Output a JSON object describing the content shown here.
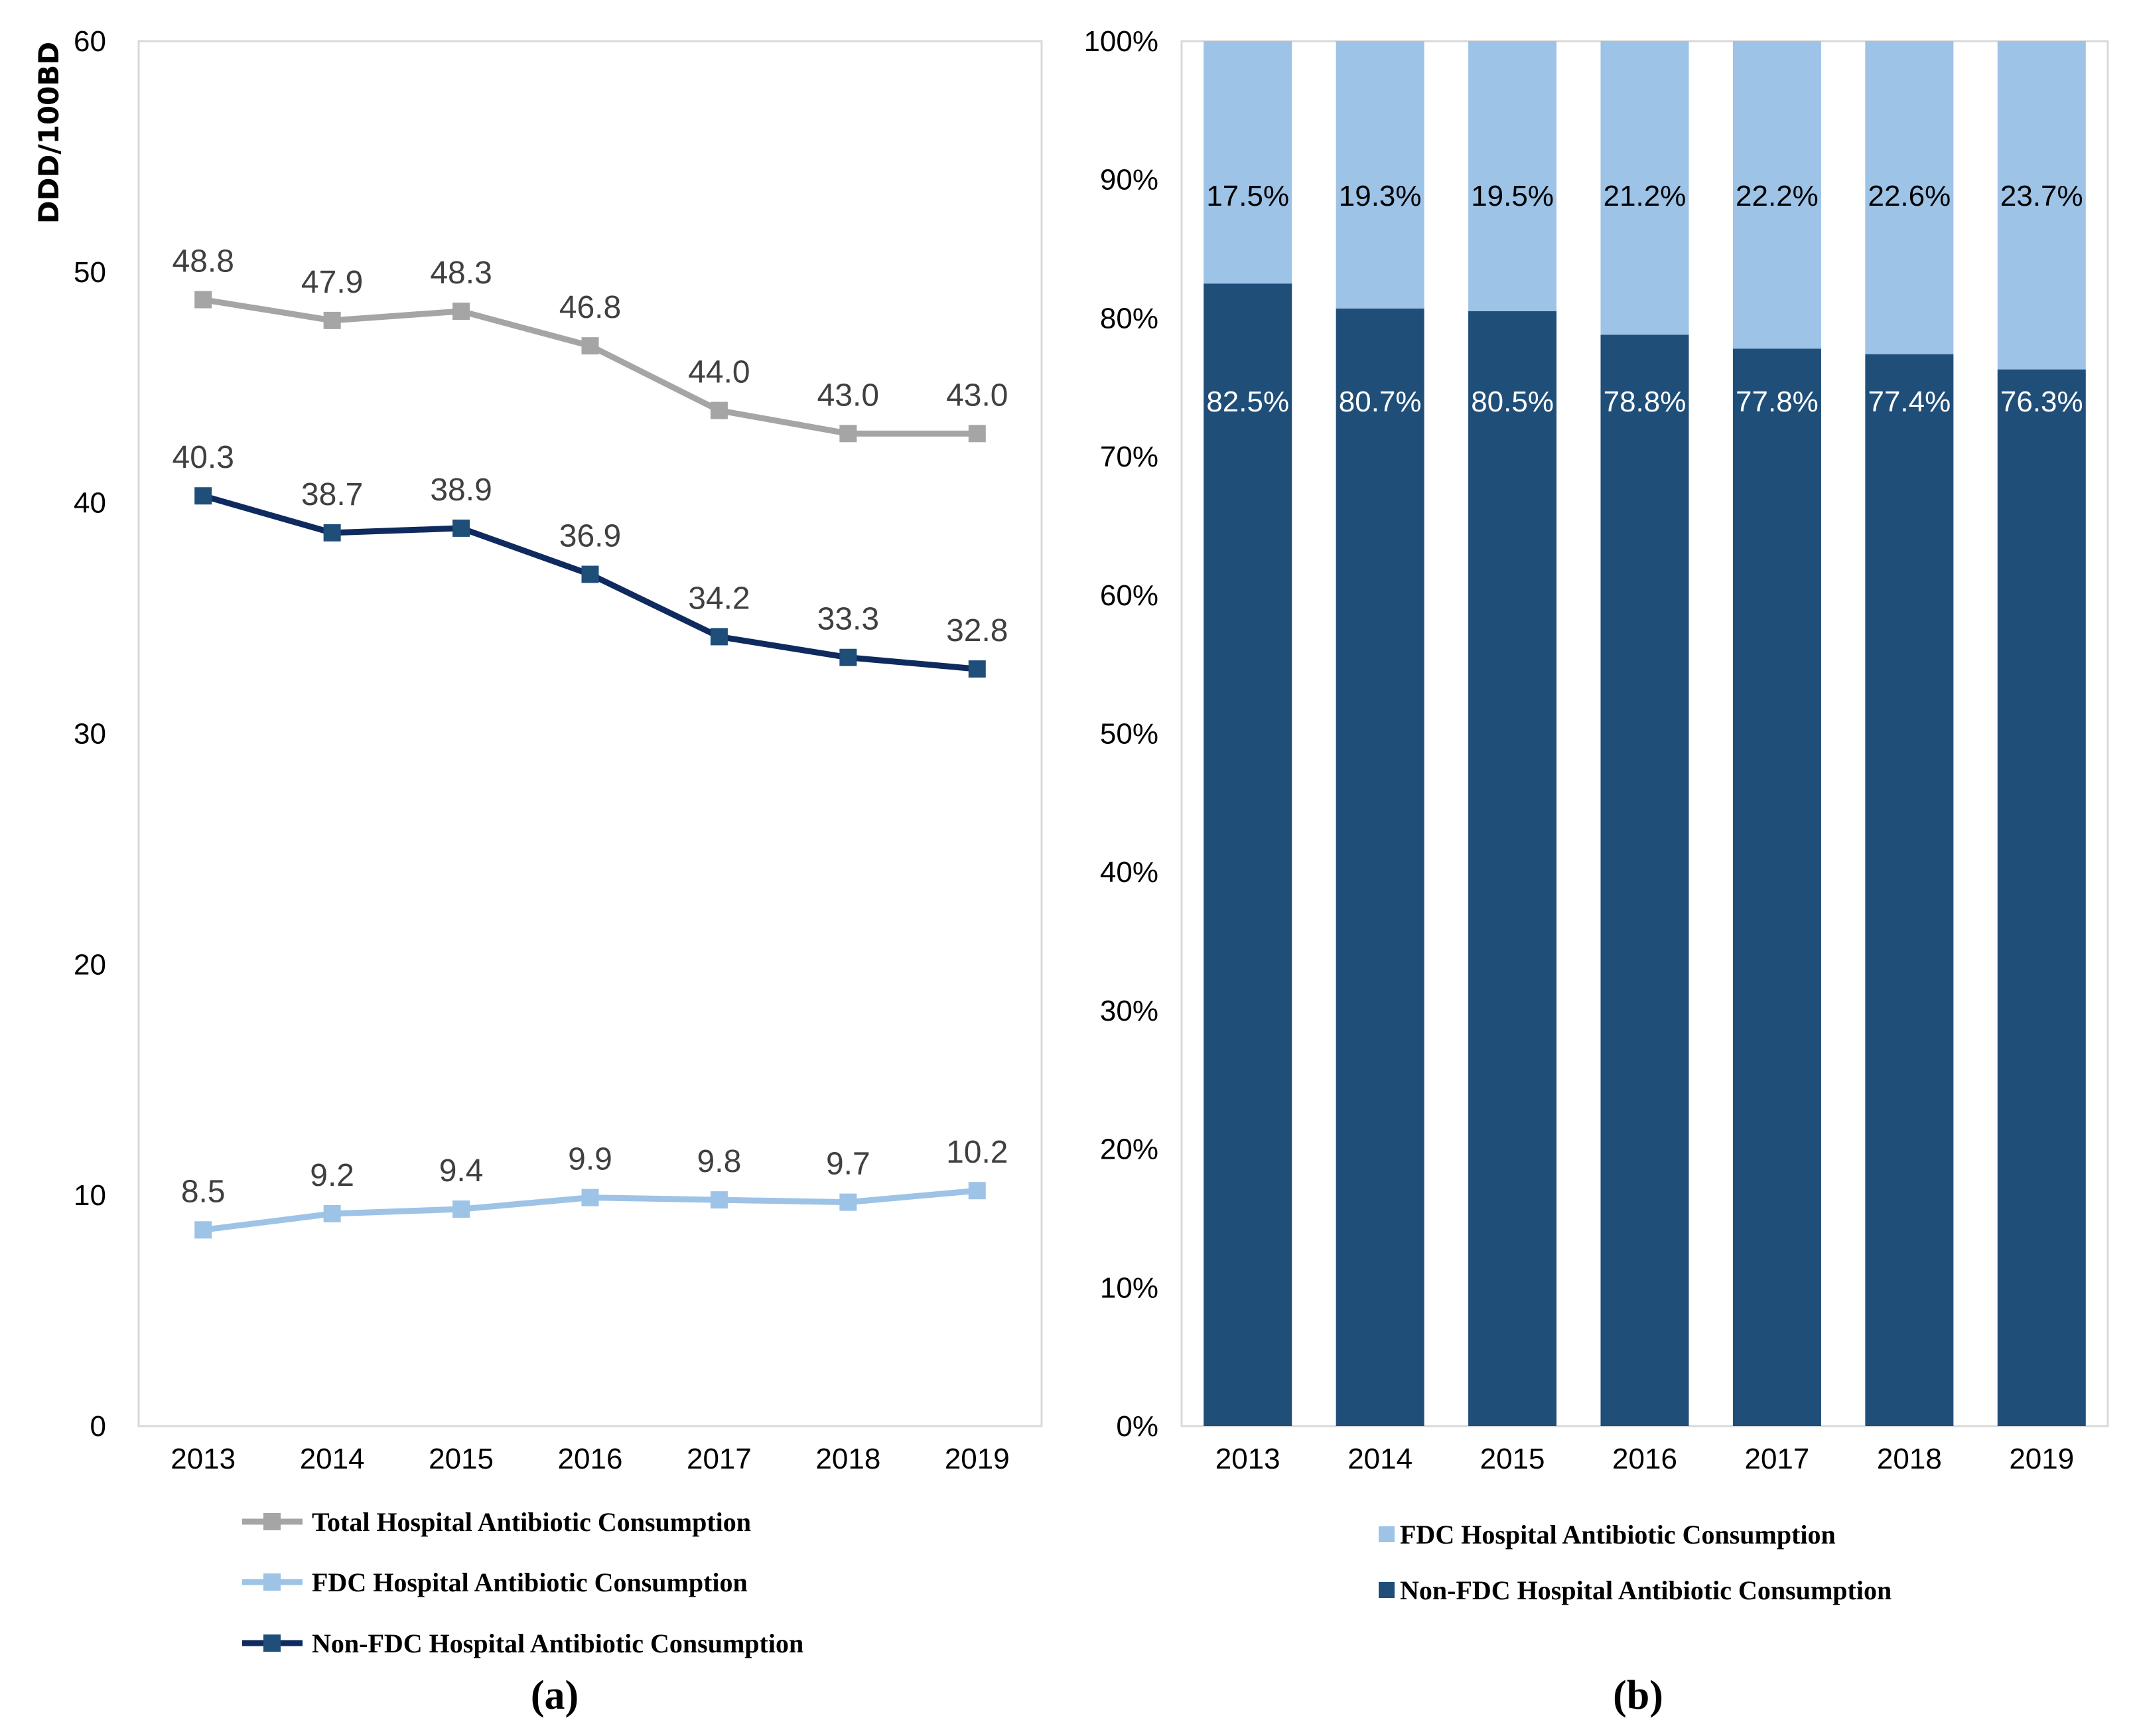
{
  "colors": {
    "total": "#a5a5a5",
    "fdc": "#9dc3e6",
    "nonfdc_line": "#0e2a5e",
    "nonfdc_marker": "#1f4e79",
    "bar_nonfdc": "#1f4e79",
    "bar_fdc": "#9dc3e6"
  },
  "chart_data": [
    {
      "type": "line",
      "caption": "(a)",
      "ylabel": "DDD/100BD",
      "xlabel": "",
      "ylim": [
        0,
        60
      ],
      "yticks": [
        "0",
        "10",
        "20",
        "30",
        "40",
        "50",
        "60"
      ],
      "categories": [
        "2013",
        "2014",
        "2015",
        "2016",
        "2017",
        "2018",
        "2019"
      ],
      "legend_position": "bottom",
      "series": [
        {
          "name": "Total Hospital Antibiotic Consumption",
          "values": [
            48.8,
            47.9,
            48.3,
            46.8,
            44.0,
            43.0,
            43.0
          ],
          "labels": [
            "48.8",
            "47.9",
            "48.3",
            "46.8",
            "44.0",
            "43.0",
            "43.0"
          ]
        },
        {
          "name": "FDC Hospital Antibiotic Consumption",
          "values": [
            8.5,
            9.2,
            9.4,
            9.9,
            9.8,
            9.7,
            10.2
          ],
          "labels": [
            "8.5",
            "9.2",
            "9.4",
            "9.9",
            "9.8",
            "9.7",
            "10.2"
          ]
        },
        {
          "name": "Non-FDC Hospital Antibiotic Consumption",
          "values": [
            40.3,
            38.7,
            38.9,
            36.9,
            34.2,
            33.3,
            32.8
          ],
          "labels": [
            "40.3",
            "38.7",
            "38.9",
            "36.9",
            "34.2",
            "33.3",
            "32.8"
          ]
        }
      ]
    },
    {
      "type": "bar",
      "stacked": "percent",
      "caption": "(b)",
      "ylabel": "",
      "xlabel": "",
      "ylim": [
        0,
        100
      ],
      "yticks": [
        "0%",
        "10%",
        "20%",
        "30%",
        "40%",
        "50%",
        "60%",
        "70%",
        "80%",
        "90%",
        "100%"
      ],
      "categories": [
        "2013",
        "2014",
        "2015",
        "2016",
        "2017",
        "2018",
        "2019"
      ],
      "legend_position": "bottom",
      "series": [
        {
          "name": "FDC Hospital Antibiotic Consumption",
          "values": [
            17.5,
            19.3,
            19.5,
            21.2,
            22.2,
            22.6,
            23.7
          ],
          "labels": [
            "17.5%",
            "19.3%",
            "19.5%",
            "21.2%",
            "22.2%",
            "22.6%",
            "23.7%"
          ]
        },
        {
          "name": "Non-FDC Hospital Antibiotic Consumption",
          "values": [
            82.5,
            80.7,
            80.5,
            78.8,
            77.8,
            77.4,
            76.3
          ],
          "labels": [
            "82.5%",
            "80.7%",
            "80.5%",
            "78.8%",
            "77.8%",
            "77.4%",
            "76.3%"
          ]
        }
      ]
    }
  ]
}
